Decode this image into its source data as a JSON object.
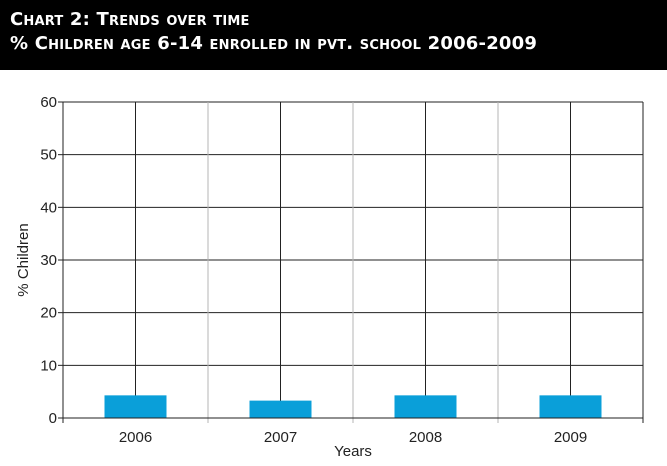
{
  "header": {
    "title_line1": "Chart 2: Trends over time",
    "title_line2": "% Children age 6-14 enrolled in pvt. school 2006-2009"
  },
  "chart_data": {
    "type": "bar",
    "categories": [
      "2006",
      "2007",
      "2008",
      "2009"
    ],
    "series": [
      {
        "values": [
          4.3,
          3.3,
          4.3,
          4.3
        ]
      }
    ],
    "xlabel": "Years",
    "ylabel": "% Children",
    "ylim": [
      0,
      60
    ],
    "yticks": [
      0,
      10,
      20,
      30,
      40,
      50,
      60
    ],
    "grid": true,
    "bar_color": "#0a9fd9"
  }
}
